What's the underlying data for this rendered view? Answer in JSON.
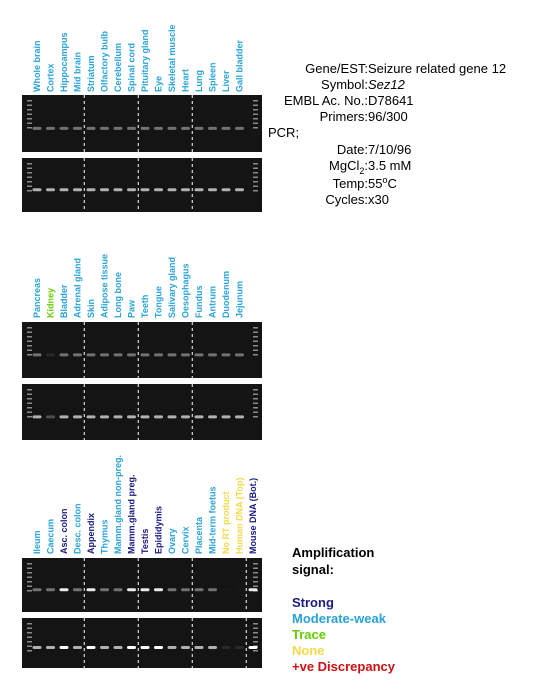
{
  "panels": [
    {
      "lanes": [
        {
          "label": "Whole brain",
          "color": "#29a3d6"
        },
        {
          "label": "Cortex",
          "color": "#29a3d6"
        },
        {
          "label": "Hippocampus",
          "color": "#29a3d6"
        },
        {
          "label": "Mid brain",
          "color": "#29a3d6"
        },
        {
          "label": "Striatum",
          "color": "#29a3d6"
        },
        {
          "label": "Olfactory bulb",
          "color": "#29a3d6"
        },
        {
          "label": "Cerebellum",
          "color": "#29a3d6"
        },
        {
          "label": "Spinal cord",
          "color": "#29a3d6"
        },
        {
          "label": "Pituitary gland",
          "color": "#29a3d6"
        },
        {
          "label": "Eye",
          "color": "#29a3d6"
        },
        {
          "label": "Skeletal muscle",
          "color": "#29a3d6"
        },
        {
          "label": "Heart",
          "color": "#29a3d6"
        },
        {
          "label": "Lung",
          "color": "#29a3d6"
        },
        {
          "label": "Spleen",
          "color": "#29a3d6"
        },
        {
          "label": "Liver",
          "color": "#29a3d6"
        },
        {
          "label": "Gall bladder",
          "color": "#29a3d6"
        }
      ]
    },
    {
      "lanes": [
        {
          "label": "Pancreas",
          "color": "#29a3d6"
        },
        {
          "label": "Kidney",
          "color": "#66cc00"
        },
        {
          "label": "Bladder",
          "color": "#29a3d6"
        },
        {
          "label": "Adrenal gland",
          "color": "#29a3d6"
        },
        {
          "label": "Skin",
          "color": "#29a3d6"
        },
        {
          "label": "Adipose tissue",
          "color": "#29a3d6"
        },
        {
          "label": "Long bone",
          "color": "#29a3d6"
        },
        {
          "label": "Paw",
          "color": "#29a3d6"
        },
        {
          "label": "Teeth",
          "color": "#29a3d6"
        },
        {
          "label": "Tongue",
          "color": "#29a3d6"
        },
        {
          "label": "Salivary gland",
          "color": "#29a3d6"
        },
        {
          "label": "Oesophagus",
          "color": "#29a3d6"
        },
        {
          "label": "Fundus",
          "color": "#29a3d6"
        },
        {
          "label": "Antrum",
          "color": "#29a3d6"
        },
        {
          "label": "Duodenum",
          "color": "#29a3d6"
        },
        {
          "label": "Jejunum",
          "color": "#29a3d6"
        }
      ]
    },
    {
      "lanes": [
        {
          "label": "Ileum",
          "color": "#29a3d6"
        },
        {
          "label": "Caecum",
          "color": "#29a3d6"
        },
        {
          "label": "Asc. colon",
          "color": "#1a1a80"
        },
        {
          "label": "Desc. colon",
          "color": "#29a3d6"
        },
        {
          "label": "Appendix",
          "color": "#1a1a80"
        },
        {
          "label": "Thymus",
          "color": "#29a3d6"
        },
        {
          "label": "Mamm.gland non-preg.",
          "color": "#29a3d6"
        },
        {
          "label": "Mamm.gland preg.",
          "color": "#1a1a80"
        },
        {
          "label": "Testis",
          "color": "#1a1a80"
        },
        {
          "label": "Epididymis",
          "color": "#1a1a80"
        },
        {
          "label": "Ovary",
          "color": "#29a3d6"
        },
        {
          "label": "Cervix",
          "color": "#29a3d6"
        },
        {
          "label": "Placenta",
          "color": "#29a3d6"
        },
        {
          "label": "Mid-term foetus",
          "color": "#29a3d6"
        },
        {
          "label": "No RT product",
          "color": "#f5d94a"
        },
        {
          "label": "Human DNA (Top)",
          "color": "#f5d94a"
        },
        {
          "label": "Mouse DNA (Bot.)",
          "color": "#1a1a80"
        }
      ]
    }
  ],
  "info": {
    "gene": {
      "label": "Gene/EST:",
      "value": "Seizure related gene 12"
    },
    "symbol": {
      "label": "Symbol:",
      "value": "Sez12"
    },
    "embl": {
      "label": "EMBL Ac. No.:",
      "value": "D78641"
    },
    "primers": {
      "label": "Primers:",
      "value": "96/300"
    },
    "pcr": "PCR;",
    "date": {
      "label": "Date:",
      "value": "7/10/96"
    },
    "mgcl": {
      "label": "MgCl",
      "sub": "2",
      "colon": ":",
      "value": "3.5 mM"
    },
    "temp": {
      "label": "Temp:",
      "value": "55",
      "sup": "o",
      "unit": "C"
    },
    "cycles": {
      "label": "Cycles:",
      "value": "x30"
    }
  },
  "legend": {
    "title": [
      "Amplification",
      "signal:"
    ],
    "items": [
      {
        "label": "Strong",
        "color": "#1a1a80"
      },
      {
        "label": "Moderate-weak",
        "color": "#29a3d6"
      },
      {
        "label": "Trace",
        "color": "#66cc00"
      },
      {
        "label": "None",
        "color": "#f5d94a"
      },
      {
        "label": "+ve Discrepancy",
        "color": "#cc1111"
      }
    ]
  }
}
